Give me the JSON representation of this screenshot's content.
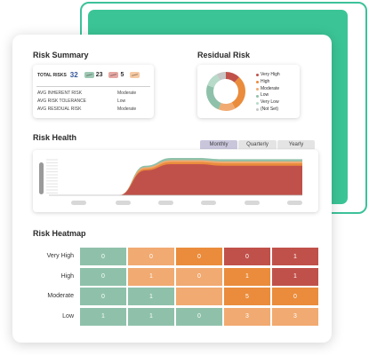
{
  "colors": {
    "very_high": "#c0514a",
    "high": "#ea8c3c",
    "moderate": "#f1aa71",
    "low": "#8fc1aa",
    "very_low": "#b7dac9",
    "not_set": "#c6c6c6",
    "accent_green": "#3bc596"
  },
  "summary": {
    "title": "Risk Summary",
    "total_label": "TOTAL RISKS",
    "total_value": "32",
    "badges": [
      {
        "value": "23",
        "color": "#9ec8b3"
      },
      {
        "value": "5",
        "color": "#e5a7a2"
      },
      {
        "value": "",
        "color": "#f5c9a2"
      }
    ],
    "rows": [
      {
        "label": "AVG INHERENT RISK",
        "value": "Moderate"
      },
      {
        "label": "AVG RISK TOLERANCE",
        "value": "Low"
      },
      {
        "label": "AVG RESIDUAL RISK",
        "value": "Moderate"
      }
    ]
  },
  "residual": {
    "title": "Residual Risk",
    "legend": [
      {
        "label": "Very High",
        "color": "#c0514a"
      },
      {
        "label": "High",
        "color": "#ea8c3c"
      },
      {
        "label": "Moderate",
        "color": "#f1aa71"
      },
      {
        "label": "Low",
        "color": "#8fc1aa"
      },
      {
        "label": "Very Low",
        "color": "#b7dac9"
      },
      {
        "label": "(Not Set)",
        "color": "#c6c6c6"
      }
    ],
    "donut": [
      {
        "label": "Very High",
        "fraction": 0.12
      },
      {
        "label": "High",
        "fraction": 0.3
      },
      {
        "label": "Moderate",
        "fraction": 0.14
      },
      {
        "label": "Low",
        "fraction": 0.24
      },
      {
        "label": "Very Low",
        "fraction": 0.12
      },
      {
        "label": "(Not Set)",
        "fraction": 0.08
      }
    ]
  },
  "health": {
    "title": "Risk Health",
    "tabs": [
      "Monthly",
      "Quarterly",
      "Yearly"
    ],
    "active_tab": "Monthly"
  },
  "chart_data": {
    "type": "area",
    "title": "Risk Health",
    "stacked": true,
    "series": [
      {
        "color": "#c0514a",
        "values": [
          0,
          0,
          0,
          0.8,
          1.0,
          1.0,
          0.95,
          0.95,
          0.95,
          0.95
        ]
      },
      {
        "color": "#ea8c3c",
        "values": [
          0,
          0,
          0,
          0.05,
          0.07,
          0.07,
          0.08,
          0.08,
          0.08,
          0.08
        ]
      },
      {
        "color": "#f1aa71",
        "values": [
          0,
          0,
          0,
          0.05,
          0.06,
          0.06,
          0.06,
          0.06,
          0.06,
          0.06
        ]
      },
      {
        "color": "#8fc1aa",
        "values": [
          0,
          0,
          0,
          0.05,
          0.07,
          0.07,
          0.07,
          0.07,
          0.07,
          0.07
        ]
      }
    ]
  },
  "heatmap": {
    "title": "Risk Heatmap",
    "rows": [
      {
        "label": "Very High",
        "cells": [
          {
            "value": "0",
            "color": "#8fc1aa"
          },
          {
            "value": "0",
            "color": "#f1aa71"
          },
          {
            "value": "0",
            "color": "#ea8c3c"
          },
          {
            "value": "0",
            "color": "#c0514a"
          },
          {
            "value": "1",
            "color": "#c0514a"
          }
        ]
      },
      {
        "label": "High",
        "cells": [
          {
            "value": "0",
            "color": "#8fc1aa"
          },
          {
            "value": "1",
            "color": "#f1aa71"
          },
          {
            "value": "0",
            "color": "#f1aa71"
          },
          {
            "value": "1",
            "color": "#ea8c3c"
          },
          {
            "value": "1",
            "color": "#c0514a"
          }
        ]
      },
      {
        "label": "Moderate",
        "cells": [
          {
            "value": "0",
            "color": "#8fc1aa"
          },
          {
            "value": "1",
            "color": "#8fc1aa"
          },
          {
            "value": "",
            "color": "#f1aa71"
          },
          {
            "value": "5",
            "color": "#ea8c3c"
          },
          {
            "value": "0",
            "color": "#ea8c3c"
          }
        ]
      },
      {
        "label": "Low",
        "cells": [
          {
            "value": "1",
            "color": "#8fc1aa"
          },
          {
            "value": "1",
            "color": "#8fc1aa"
          },
          {
            "value": "0",
            "color": "#8fc1aa"
          },
          {
            "value": "3",
            "color": "#f1aa71"
          },
          {
            "value": "3",
            "color": "#f1aa71"
          }
        ]
      }
    ]
  }
}
